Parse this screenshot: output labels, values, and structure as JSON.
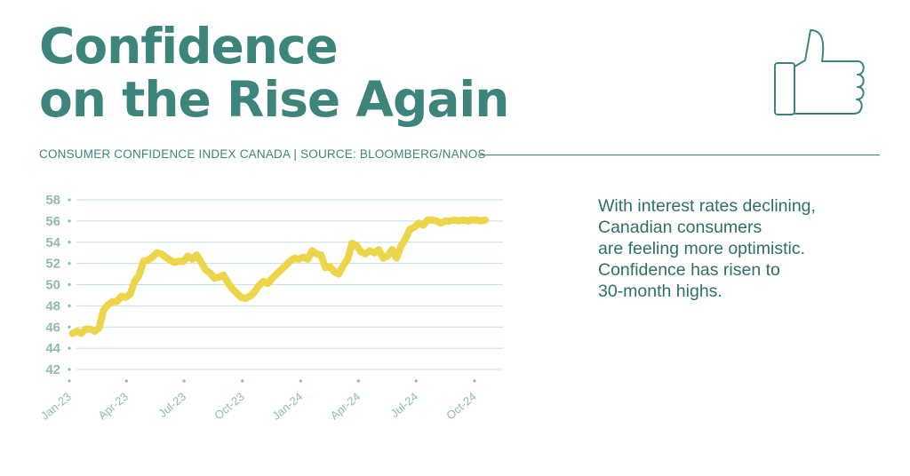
{
  "header": {
    "title_lines": [
      "Confidence",
      "on the Rise Again"
    ],
    "subtitle": "CONSUMER CONFIDENCE INDEX CANADA | SOURCE: BLOOMBERG/NANOS"
  },
  "note_lines": [
    "With interest rates declining,",
    "Canadian consumers",
    "are feeling more optimistic.",
    "Confidence has risen to",
    "30-month highs."
  ],
  "icons": {
    "header_icon": "thumbs-up-icon"
  },
  "colors": {
    "title": "#3d847c",
    "line": "#edd54a",
    "axis_text": "#8fbab4",
    "grid": "#c9dedb"
  },
  "chart_data": {
    "type": "line",
    "title": "",
    "xlabel": "",
    "ylabel": "",
    "ylim": [
      42,
      58
    ],
    "yticks": [
      42,
      44,
      46,
      48,
      50,
      52,
      54,
      56,
      58
    ],
    "xlim": [
      "2023-01-01",
      "2024-11-15"
    ],
    "xticks": [
      {
        "date": "2023-01-01",
        "label": "Jan-23"
      },
      {
        "date": "2023-04-01",
        "label": "Apr-23"
      },
      {
        "date": "2023-07-01",
        "label": "Jul-23"
      },
      {
        "date": "2023-10-01",
        "label": "Oct-23"
      },
      {
        "date": "2024-01-01",
        "label": "Jan-24"
      },
      {
        "date": "2024-04-01",
        "label": "Apr-24"
      },
      {
        "date": "2024-07-01",
        "label": "Jul-24"
      },
      {
        "date": "2024-10-01",
        "label": "Oct-24"
      }
    ],
    "grid": true,
    "series": [
      {
        "x": [
          "2023-01-06",
          "2023-01-13",
          "2023-01-20",
          "2023-01-27",
          "2023-02-03",
          "2023-02-10",
          "2023-02-17",
          "2023-02-24",
          "2023-03-03",
          "2023-03-10",
          "2023-03-17",
          "2023-03-24",
          "2023-03-31",
          "2023-04-07",
          "2023-04-14",
          "2023-04-21",
          "2023-04-28",
          "2023-05-05",
          "2023-05-12",
          "2023-05-19",
          "2023-05-26",
          "2023-06-02",
          "2023-06-09",
          "2023-06-16",
          "2023-06-23",
          "2023-06-30",
          "2023-07-07",
          "2023-07-14",
          "2023-07-21",
          "2023-07-28",
          "2023-08-04",
          "2023-08-11",
          "2023-08-18",
          "2023-08-25",
          "2023-09-01",
          "2023-09-08",
          "2023-09-15",
          "2023-09-22",
          "2023-09-29",
          "2023-10-06",
          "2023-10-13",
          "2023-10-20",
          "2023-10-27",
          "2023-11-03",
          "2023-11-10",
          "2023-11-17",
          "2023-11-24",
          "2023-12-01",
          "2023-12-08",
          "2023-12-15",
          "2023-12-22",
          "2023-12-29",
          "2024-01-05",
          "2024-01-12",
          "2024-01-19",
          "2024-01-26",
          "2024-02-02",
          "2024-02-09",
          "2024-02-16",
          "2024-02-23",
          "2024-03-01",
          "2024-03-08",
          "2024-03-15",
          "2024-03-22",
          "2024-03-29",
          "2024-04-05",
          "2024-04-12",
          "2024-04-19",
          "2024-04-26",
          "2024-05-03",
          "2024-05-10",
          "2024-05-17",
          "2024-05-24",
          "2024-05-31",
          "2024-06-07",
          "2024-06-14",
          "2024-06-21",
          "2024-06-28",
          "2024-07-05",
          "2024-07-12",
          "2024-07-19",
          "2024-07-26",
          "2024-08-02",
          "2024-08-09",
          "2024-08-16",
          "2024-08-23",
          "2024-08-30",
          "2024-09-06",
          "2024-09-13",
          "2024-09-20",
          "2024-09-27",
          "2024-10-04",
          "2024-10-11",
          "2024-10-18"
        ],
        "values": [
          45.4,
          45.6,
          45.4,
          45.8,
          45.8,
          45.6,
          45.9,
          47.6,
          48.1,
          48.4,
          48.4,
          48.9,
          48.8,
          49.1,
          50.3,
          50.9,
          52.2,
          52.3,
          52.6,
          53.0,
          52.9,
          52.6,
          52.3,
          52.1,
          52.2,
          52.2,
          52.7,
          52.4,
          52.8,
          52.1,
          51.4,
          51.1,
          50.6,
          50.7,
          50.9,
          50.2,
          49.6,
          49.2,
          48.8,
          48.7,
          48.9,
          49.3,
          49.9,
          50.3,
          50.1,
          50.6,
          51.0,
          51.4,
          51.8,
          52.2,
          52.5,
          52.4,
          52.6,
          52.4,
          53.2,
          52.9,
          52.8,
          51.6,
          51.7,
          51.2,
          51.0,
          51.8,
          52.4,
          53.9,
          53.7,
          53.1,
          52.9,
          53.2,
          53.0,
          53.3,
          52.5,
          52.7,
          53.3,
          52.5,
          53.6,
          54.3,
          55.2,
          55.4,
          55.8,
          55.6,
          56.1,
          56.1,
          56.0,
          55.8,
          56.0,
          56.0,
          56.1,
          56.0,
          56.1,
          56.0,
          56.1,
          56.1,
          56.0,
          56.1
        ]
      }
    ]
  }
}
